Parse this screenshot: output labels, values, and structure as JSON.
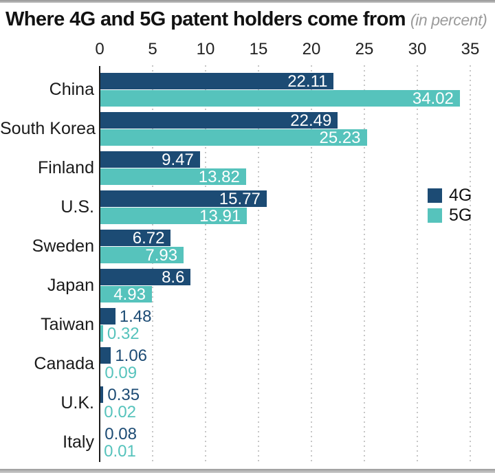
{
  "title": "Where 4G and 5G patent holders come from",
  "subtitle": "(in percent)",
  "colors": {
    "4g": "#1c4b74",
    "5g": "#56c3bc",
    "axis": "#1b1b1b",
    "gridline": "#c6c6c6"
  },
  "chart_data": {
    "type": "bar",
    "orientation": "horizontal",
    "title": "Where 4G and 5G patent holders come from",
    "subtitle": "(in percent)",
    "categories": [
      "China",
      "South Korea",
      "Finland",
      "U.S.",
      "Sweden",
      "Japan",
      "Taiwan",
      "Canada",
      "U.K.",
      "Italy"
    ],
    "series": [
      {
        "name": "4G",
        "color": "#1c4b74",
        "values": [
          22.11,
          22.49,
          9.47,
          15.77,
          6.72,
          8.6,
          1.48,
          1.06,
          0.35,
          0.08
        ]
      },
      {
        "name": "5G",
        "color": "#56c3bc",
        "values": [
          34.02,
          25.23,
          13.82,
          13.91,
          7.93,
          4.93,
          0.32,
          0.09,
          0.02,
          0.01
        ]
      }
    ],
    "x_ticks": [
      0,
      5,
      10,
      15,
      20,
      25,
      30,
      35
    ],
    "xlim": [
      0,
      35
    ],
    "grid": "dotted-vertical-gridlines",
    "value_labels": "shown-on-every-bar",
    "legend_position": "right-middle"
  }
}
